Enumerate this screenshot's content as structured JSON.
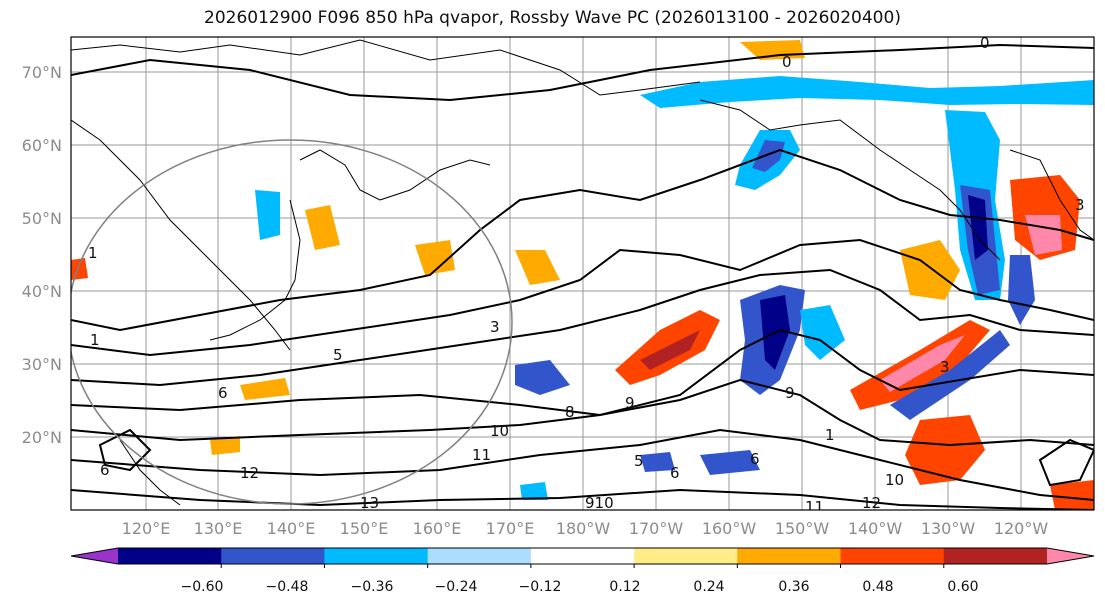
{
  "title": "2026012900 F096 850 hPa qvapor, Rossby Wave PC (2026013100 - 2026020400)",
  "map": {
    "lat_labels": [
      "70°N",
      "60°N",
      "50°N",
      "40°N",
      "30°N",
      "20°N"
    ],
    "lon_labels": [
      "120°E",
      "130°E",
      "140°E",
      "150°E",
      "160°E",
      "170°E",
      "180°W",
      "170°W",
      "160°W",
      "150°W",
      "140°W",
      "130°W",
      "120°W"
    ],
    "contour_labels": [
      {
        "text": "0"
      },
      {
        "text": "0"
      },
      {
        "text": "1"
      },
      {
        "text": "3"
      },
      {
        "text": "3"
      },
      {
        "text": "5"
      },
      {
        "text": "6"
      },
      {
        "text": "6"
      },
      {
        "text": "8"
      },
      {
        "text": "9"
      },
      {
        "text": "9"
      },
      {
        "text": "10"
      },
      {
        "text": "11"
      },
      {
        "text": "12"
      },
      {
        "text": "13"
      },
      {
        "text": "5"
      },
      {
        "text": "6"
      },
      {
        "text": "6"
      },
      {
        "text": "910"
      },
      {
        "text": "11"
      },
      {
        "text": "12"
      },
      {
        "text": "10"
      },
      {
        "text": "1"
      },
      {
        "text": "3"
      },
      {
        "text": "1"
      }
    ],
    "colors": {
      "coast": "#000000",
      "grid": "#9a9a9a",
      "circle": "#808080"
    }
  },
  "colorbar": {
    "ticks": [
      "−0.60",
      "−0.48",
      "−0.36",
      "−0.24",
      "−0.12",
      "0.12",
      "0.24",
      "0.36",
      "0.48",
      "0.60"
    ],
    "colors": [
      "#9933cc",
      "#000088",
      "#3355cc",
      "#00bbff",
      "#aaddff",
      "#ffffff",
      "#ffee88",
      "#ffaa00",
      "#ff4400",
      "#b22222",
      "#ff88aa"
    ]
  }
}
